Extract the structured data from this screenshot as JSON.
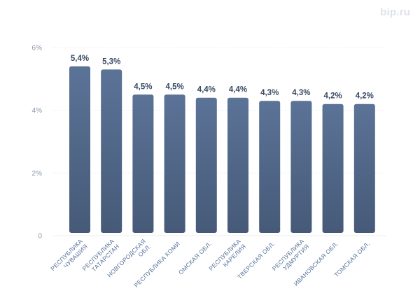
{
  "brand": "bip.ru",
  "colors": {
    "bar_top": "#5b7397",
    "bar_bottom": "#465a78",
    "grid": "#e9ecf1",
    "tick_label": "#8d97a8",
    "value_label": "#3a4a64",
    "category_label": "#56709a"
  },
  "chart_data": {
    "type": "bar",
    "title": "",
    "xlabel": "",
    "ylabel": "",
    "ylim": [
      0,
      6
    ],
    "yticks": [
      0,
      2,
      4,
      6
    ],
    "ytick_labels": [
      "0",
      "2%",
      "4%",
      "6%"
    ],
    "grid": true,
    "categories": [
      [
        "РЕСПУБЛИКА",
        "ЧУВАШИЯ"
      ],
      [
        "РЕСПУБЛИКА",
        "ТАТАРСТАН"
      ],
      [
        "НОВГОРОДСКАЯ",
        "ОБЛ."
      ],
      [
        "РЕСПУБЛИКА КОМИ"
      ],
      [
        "ОМСКАЯ ОБЛ."
      ],
      [
        "РЕСПУБЛИКА",
        "КАРЕЛИЯ"
      ],
      [
        "ТВЕРСКАЯ ОБЛ."
      ],
      [
        "РЕСПУБЛИКА",
        "УДМУРТИЯ"
      ],
      [
        "ИВАНОВСКАЯ ОБЛ."
      ],
      [
        "ТОМСКАЯ ОБЛ."
      ]
    ],
    "values": [
      5.4,
      5.3,
      4.5,
      4.5,
      4.4,
      4.4,
      4.3,
      4.3,
      4.2,
      4.2
    ],
    "value_labels": [
      "5,4%",
      "5,3%",
      "4,5%",
      "4,5%",
      "4,4%",
      "4,4%",
      "4,3%",
      "4,3%",
      "4,2%",
      "4,2%"
    ]
  }
}
